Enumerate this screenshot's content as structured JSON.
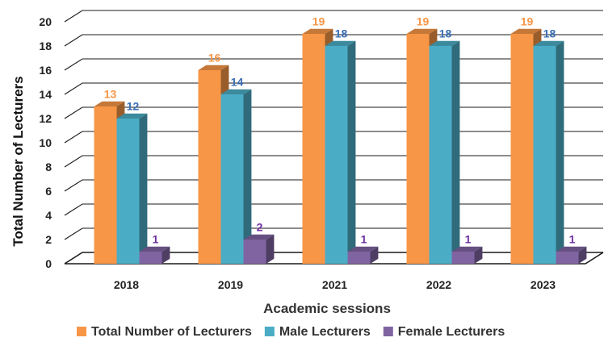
{
  "chart_data": {
    "type": "bar",
    "categories": [
      "2018",
      "2019",
      "2021",
      "2022",
      "2023"
    ],
    "series": [
      {
        "name": "Total Number of Lecturers",
        "values": [
          13,
          16,
          19,
          19,
          19
        ],
        "color": "#F79646",
        "label_color": "#F79646"
      },
      {
        "name": "Male Lecturers",
        "values": [
          12,
          14,
          18,
          18,
          18
        ],
        "color": "#4BACC6",
        "label_color": "#3B6FB6"
      },
      {
        "name": "Female Lecturers",
        "values": [
          1,
          2,
          1,
          1,
          1
        ],
        "color": "#8064A2",
        "label_color": "#7030A0"
      }
    ],
    "title": "",
    "xlabel": "Academic sessions",
    "ylabel": "Total Number of Lecturers",
    "ylim": [
      0,
      20
    ],
    "yticks": [
      0,
      2,
      4,
      6,
      8,
      10,
      12,
      14,
      16,
      18,
      20
    ],
    "grid": true,
    "legend_position": "bottom"
  }
}
